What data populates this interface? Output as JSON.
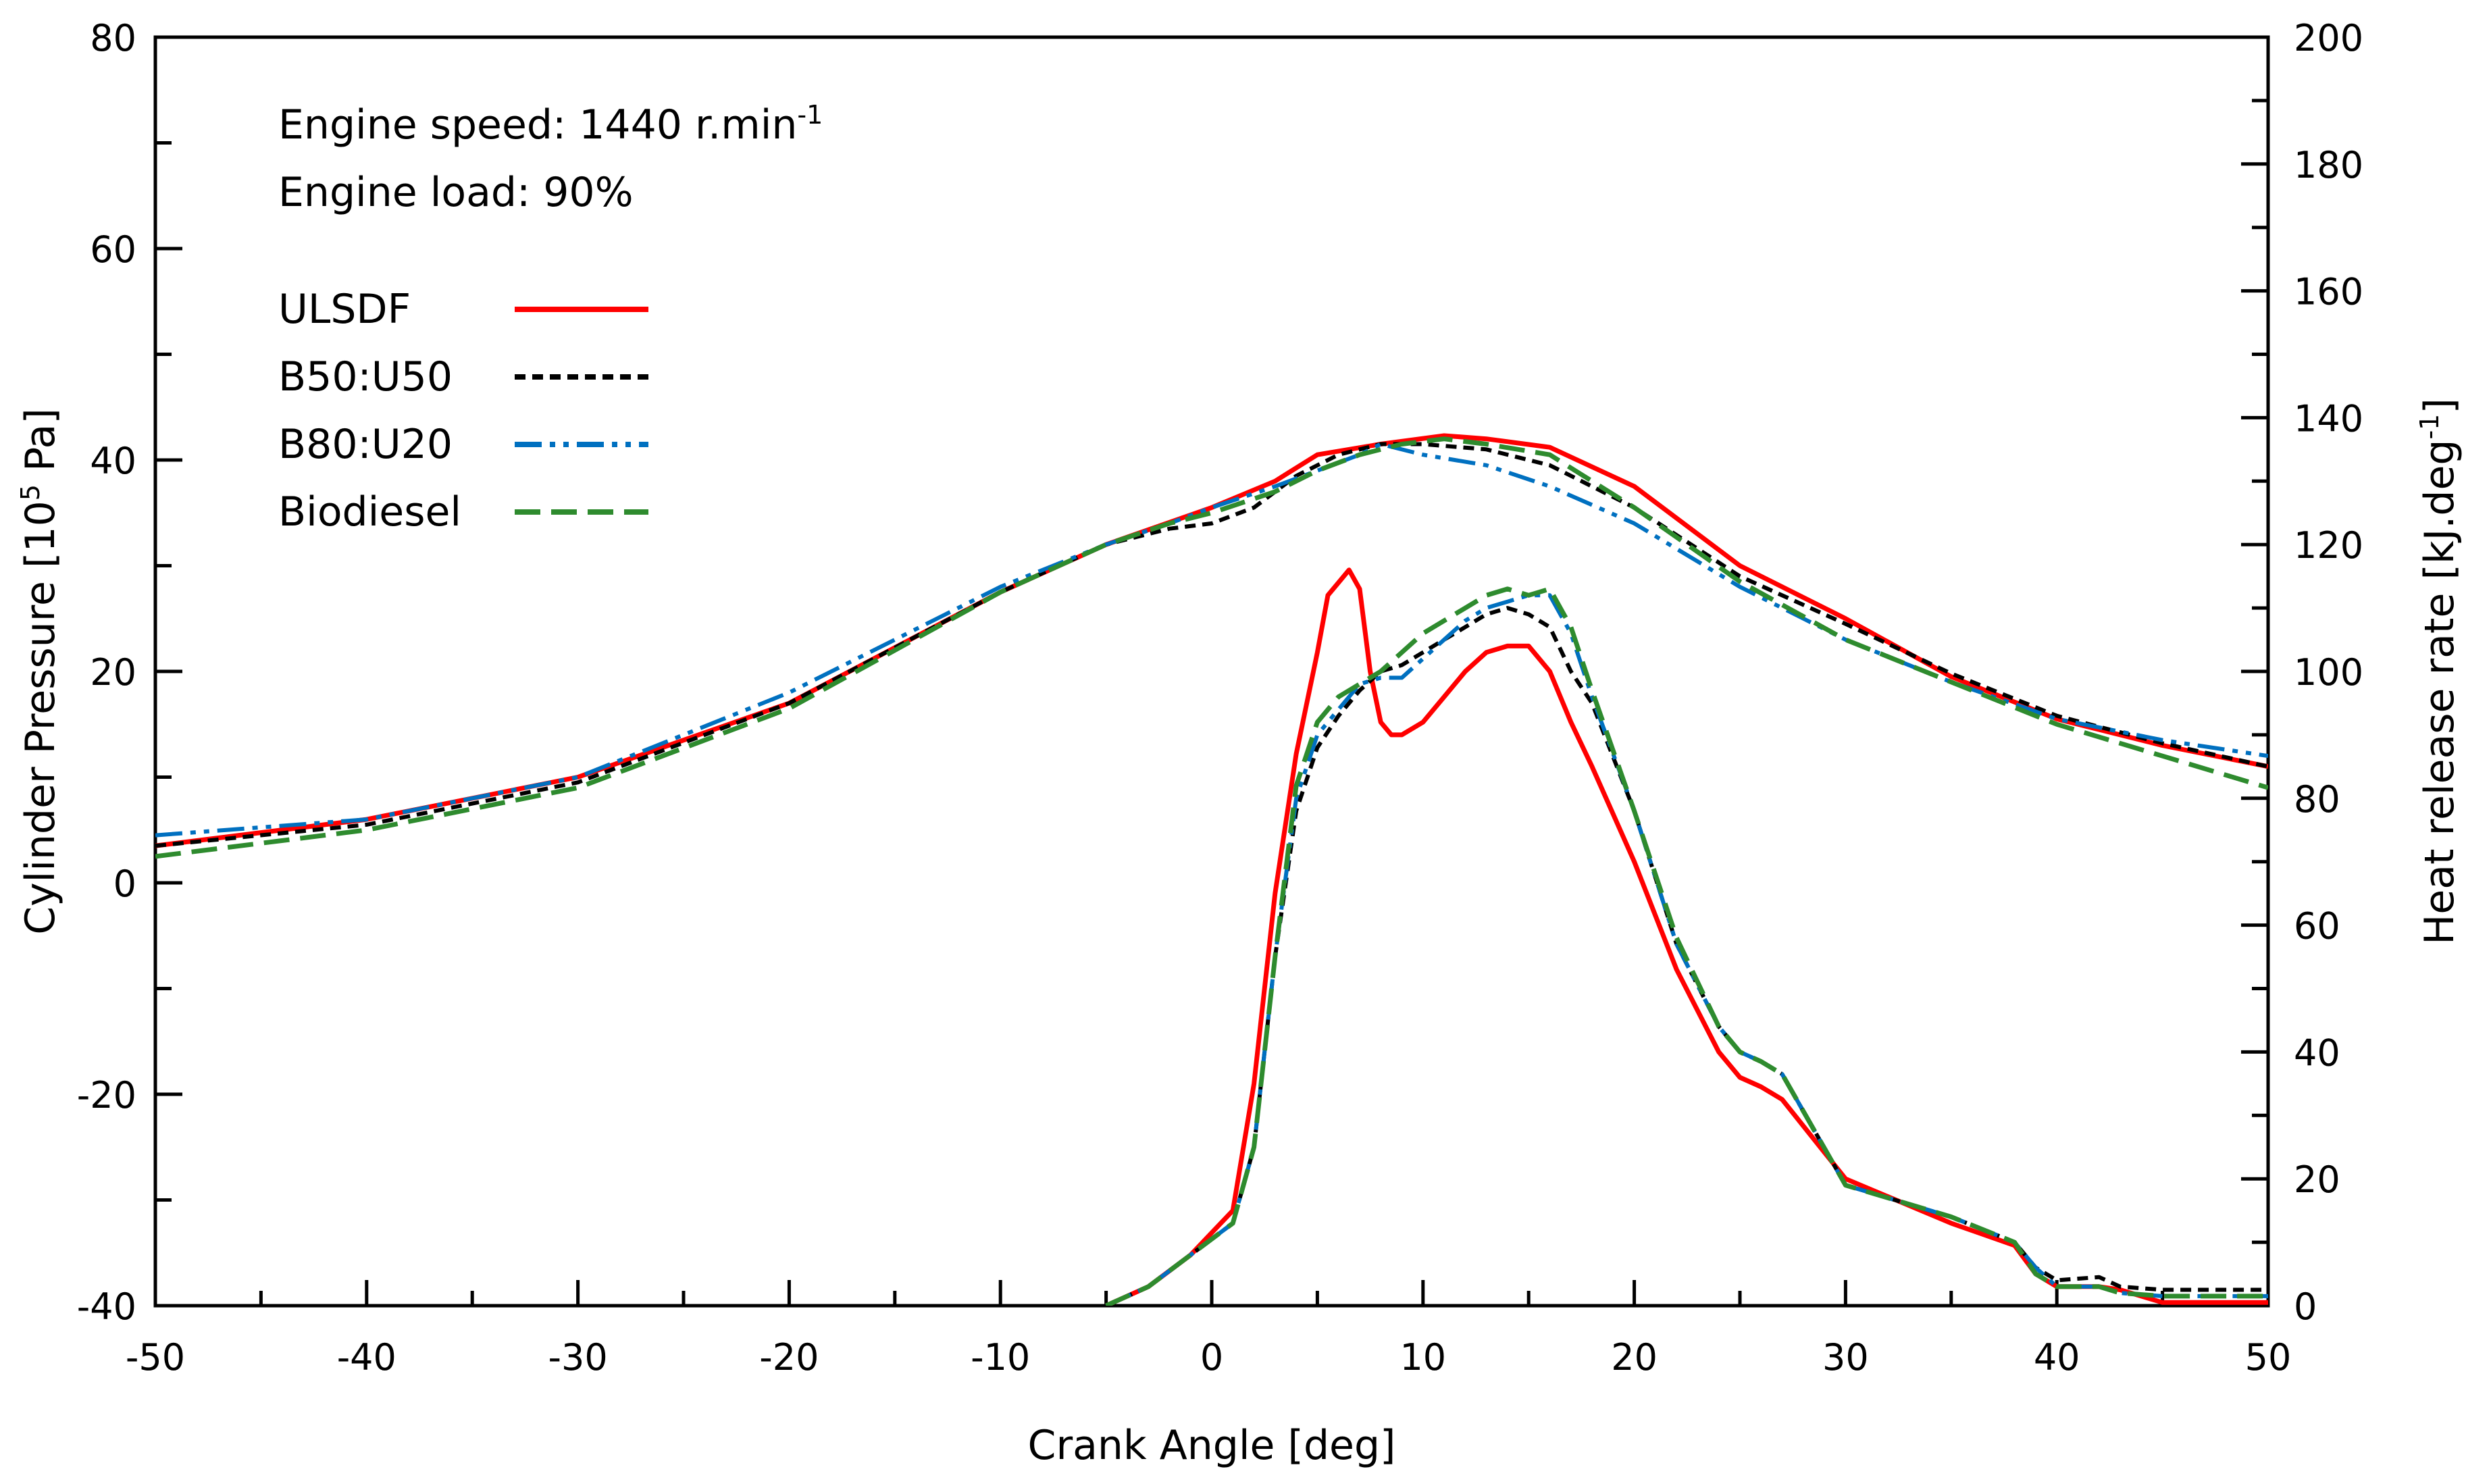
{
  "chart_data": {
    "type": "line",
    "title": "",
    "xlabel": "Crank Angle [deg]",
    "ylabel_left": {
      "prefix": "Cylinder Pressure [10",
      "sup": "5",
      "suffix": " Pa]"
    },
    "ylabel_right": {
      "prefix": "Heat release rate [kJ.deg",
      "sup": "-1",
      "suffix": "]"
    },
    "xlim": [
      -50,
      50
    ],
    "ylim_left": [
      -40,
      80
    ],
    "ylim_right": [
      0,
      200
    ],
    "x_ticks": [
      -50,
      -40,
      -30,
      -20,
      -10,
      0,
      10,
      20,
      30,
      40,
      50
    ],
    "y_left_ticks": [
      -40,
      -20,
      0,
      20,
      40,
      60,
      80
    ],
    "y_right_ticks": [
      0,
      20,
      40,
      60,
      80,
      100,
      120,
      140,
      160,
      180,
      200
    ],
    "grid": false,
    "legend_position": "top-left",
    "annotations": [
      {
        "text": "Engine speed: 1440 r.min",
        "sup": "-1"
      },
      {
        "text": "Engine load: 90%",
        "sup": ""
      }
    ],
    "series": [
      {
        "name": "ULSDF",
        "color": "#ff0000",
        "style": "solid",
        "pressure": {
          "axis": "left",
          "x": [
            -50,
            -40,
            -30,
            -20,
            -10,
            -5,
            0,
            3,
            5,
            8,
            11,
            13,
            16,
            20,
            25,
            30,
            35,
            40,
            45,
            50
          ],
          "y": [
            3.5,
            6,
            10,
            17,
            27.5,
            32,
            35.5,
            38,
            40.5,
            41.5,
            42.3,
            42,
            41.2,
            37.5,
            30,
            25,
            19.5,
            15.5,
            13,
            11
          ]
        },
        "heat_release": {
          "axis": "right",
          "x": [
            -5,
            -3,
            -1,
            1,
            2,
            3,
            4,
            5,
            5.5,
            6,
            6.5,
            7,
            7.5,
            8,
            8.5,
            9,
            10,
            11,
            12,
            13,
            14,
            15,
            16,
            17,
            18,
            20,
            22,
            24,
            25,
            26,
            27,
            30,
            35,
            38,
            39,
            40,
            42,
            43,
            45,
            50
          ],
          "y": [
            0,
            3,
            8,
            15,
            35,
            65,
            87,
            103,
            112,
            114,
            116,
            113,
            100,
            92,
            90,
            90,
            92,
            96,
            100,
            103,
            104,
            104,
            100,
            92,
            85,
            70,
            53,
            40,
            36,
            34.5,
            32.5,
            20,
            13,
            9.5,
            5,
            3,
            3,
            2.5,
            0.5,
            0.5
          ]
        }
      },
      {
        "name": "B50:U50",
        "color": "#000000",
        "style": "dashed",
        "pressure": {
          "axis": "left",
          "x": [
            -50,
            -40,
            -30,
            -20,
            -10,
            -5,
            -2,
            0,
            2,
            4,
            6,
            8,
            10,
            13,
            16,
            20,
            25,
            30,
            35,
            40,
            45,
            50
          ],
          "y": [
            3.5,
            5.5,
            9.5,
            17,
            27.5,
            32,
            33.5,
            34,
            35.5,
            38.5,
            40.5,
            41.5,
            41.5,
            41,
            39.5,
            35.5,
            29,
            24.5,
            19.8,
            15.8,
            13.2,
            11
          ]
        },
        "heat_release": {
          "axis": "right",
          "x": [
            -5,
            -3,
            -1,
            1,
            2,
            3,
            4,
            5,
            6,
            7,
            8,
            9,
            10,
            11,
            12,
            13,
            14,
            15,
            16,
            17,
            18,
            20,
            22,
            24,
            25,
            26,
            27,
            30,
            35,
            38,
            39,
            40,
            42,
            43,
            45,
            50
          ],
          "y": [
            0,
            3,
            8,
            13,
            25,
            55,
            78,
            88,
            93,
            97,
            100,
            101,
            103,
            105,
            107,
            109,
            110,
            109,
            107,
            100,
            95,
            78,
            57,
            44,
            40,
            38.5,
            36.5,
            19,
            14,
            10,
            6,
            4,
            4.5,
            3,
            2.5,
            2.5
          ]
        }
      },
      {
        "name": "B80:U20",
        "color": "#0070c0",
        "style": "dashdotdot",
        "pressure": {
          "axis": "left",
          "x": [
            -50,
            -40,
            -30,
            -20,
            -10,
            -5,
            -2,
            0,
            3,
            5,
            7,
            8,
            10,
            13,
            16,
            20,
            25,
            30,
            35,
            40,
            45,
            50
          ],
          "y": [
            4.5,
            6,
            10,
            18,
            28,
            32,
            34,
            35.5,
            37.5,
            39,
            40.5,
            41.5,
            40.5,
            39.5,
            37.5,
            34,
            28,
            23,
            19,
            15.5,
            13.5,
            12
          ]
        },
        "heat_release": {
          "axis": "right",
          "x": [
            -5,
            -3,
            -1,
            1,
            2,
            3,
            4,
            5,
            6,
            7,
            8,
            9,
            10,
            11,
            12,
            13,
            14,
            15,
            16,
            17,
            18,
            20,
            22,
            24,
            25,
            26,
            27,
            30,
            35,
            38,
            39,
            40,
            42,
            43,
            45,
            50
          ],
          "y": [
            0,
            3,
            8,
            13,
            25,
            55,
            80,
            90,
            94,
            98,
            99,
            99,
            102,
            105,
            108,
            110,
            111,
            112,
            112,
            106,
            96,
            78,
            57,
            44,
            40,
            38.5,
            36.5,
            19,
            14,
            10,
            6,
            3,
            3,
            2,
            1.5,
            1.5
          ]
        }
      },
      {
        "name": "Biodiesel",
        "color": "#2e8b2e",
        "style": "dashed",
        "pressure": {
          "axis": "left",
          "x": [
            -50,
            -40,
            -30,
            -20,
            -10,
            -5,
            -2,
            0,
            3,
            5,
            7,
            9,
            11,
            13,
            16,
            20,
            25,
            30,
            35,
            40,
            45,
            50
          ],
          "y": [
            2.5,
            5,
            9,
            16.5,
            27.5,
            32,
            34,
            35,
            37,
            39,
            40.5,
            41.5,
            42,
            41.5,
            40.5,
            35.5,
            28.5,
            23,
            19,
            15,
            12,
            9
          ]
        },
        "heat_release": {
          "axis": "right",
          "x": [
            -5,
            -3,
            -1,
            1,
            2,
            3,
            4,
            5,
            6,
            7,
            8,
            9,
            10,
            11,
            12,
            13,
            14,
            15,
            16,
            17,
            18,
            20,
            22,
            24,
            25,
            26,
            27,
            30,
            35,
            38,
            39,
            40,
            42,
            43,
            45,
            50
          ],
          "y": [
            0,
            3,
            8,
            13,
            25,
            55,
            82,
            92,
            96,
            98,
            100,
            103,
            106,
            108,
            110,
            112,
            113,
            112,
            113,
            107,
            97,
            78,
            58,
            44,
            40,
            38.5,
            36.5,
            19,
            14,
            10,
            5,
            3,
            3,
            2,
            1.5,
            1.5
          ]
        }
      }
    ]
  }
}
